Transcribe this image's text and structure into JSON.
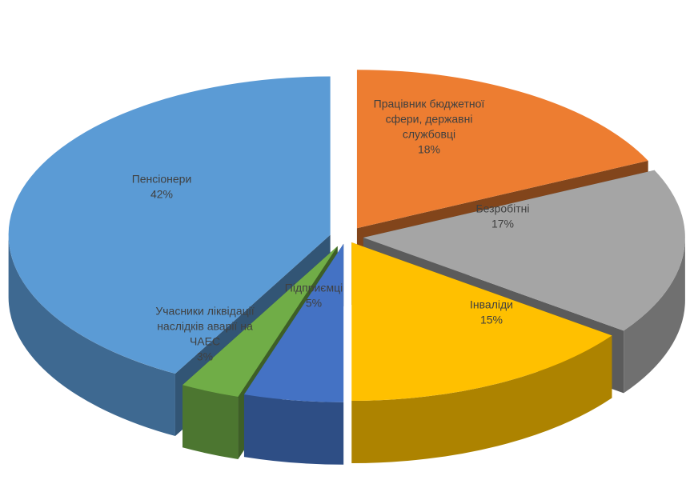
{
  "chart_data": {
    "type": "pie",
    "style": "3d-exploded",
    "slices": [
      {
        "label_lines": [
          "Працівник бюджетної",
          "сфери, державні",
          "службовці"
        ],
        "value": 18,
        "value_text": "18%",
        "color": "#ED7D31"
      },
      {
        "label_lines": [
          "Безробітні"
        ],
        "value": 17,
        "value_text": "17%",
        "color": "#A5A5A5"
      },
      {
        "label_lines": [
          "Інваліди"
        ],
        "value": 15,
        "value_text": "15%",
        "color": "#FFC000"
      },
      {
        "label_lines": [
          "Підприємці"
        ],
        "value": 5,
        "value_text": "5%",
        "color": "#4472C4"
      },
      {
        "label_lines": [
          "Учасники ліквідації",
          "наслідків аварії на",
          "ЧАЕС"
        ],
        "value": 3,
        "value_text": "3%",
        "color": "#70AD47"
      },
      {
        "label_lines": [
          "Пенсіонери"
        ],
        "value": 42,
        "value_text": "42%",
        "color": "#5B9BD5"
      }
    ]
  }
}
